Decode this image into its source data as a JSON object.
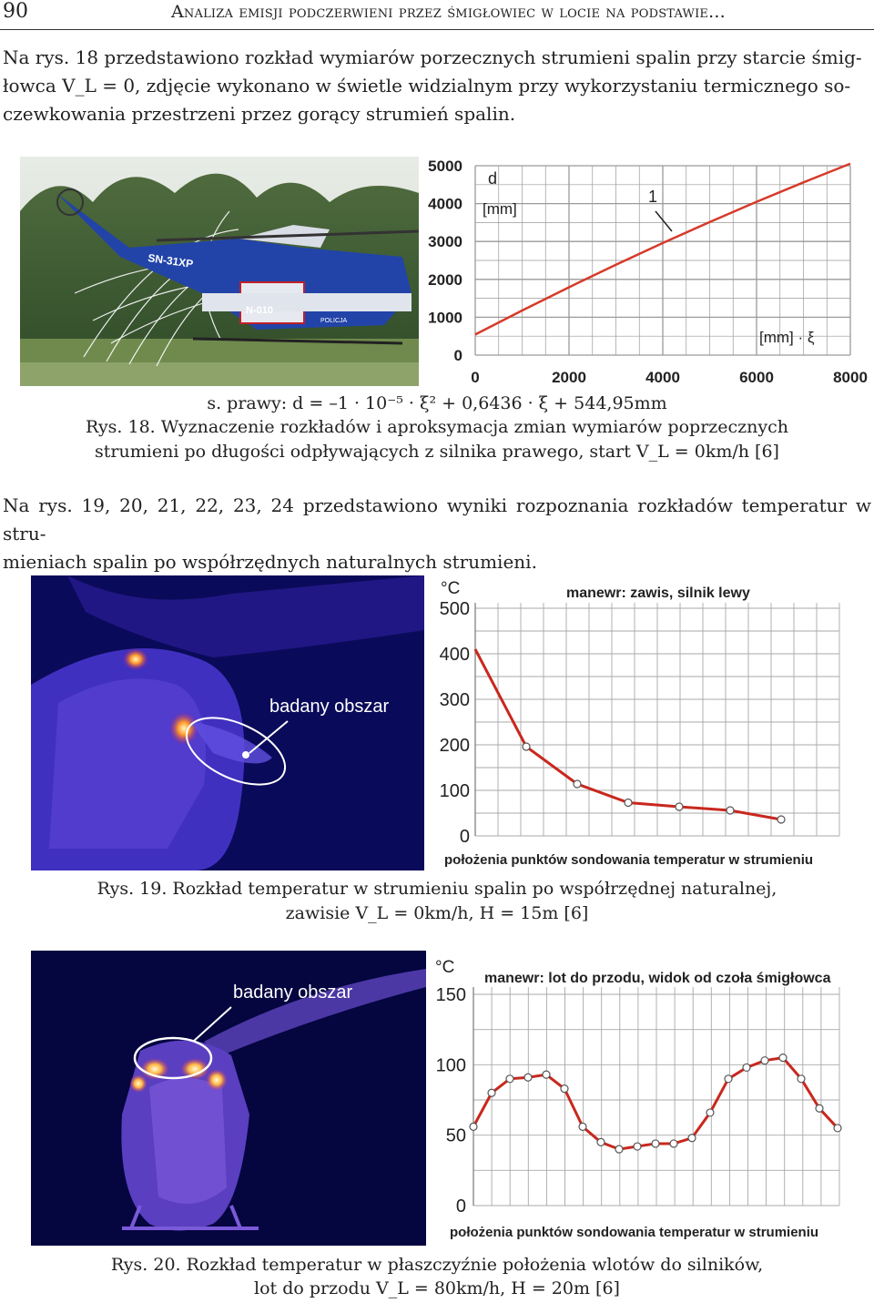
{
  "header": {
    "page_number": "90",
    "running_title": "Analiza emisji podczerwieni przez śmigłowiec w locie na podstawie..."
  },
  "paragraphs": {
    "p1": {
      "line1": "Na rys. 18 przedstawiono rozkład wymiarów porzecznych strumieni spalin przy starcie śmig-",
      "line2": "łowca V_L = 0, zdjęcie wykonano w świetle widzialnym przy wykorzystaniu termicznego so-",
      "line3": "czewkowania przestrzeni przez gorący strumień spalin."
    },
    "p2": {
      "line1": "Na rys. 19, 20, 21, 22, 23, 24 przedstawiono wyniki rozpoznania rozkładów temperatur w stru-",
      "line2": "mieniach spalin po współrzędnych naturalnych strumieni."
    }
  },
  "figure18": {
    "photo": {
      "label_tail": "SN-31XP",
      "label_door": "N-010",
      "label_police": "POLICJA"
    },
    "chart_labels": {
      "d_label": "d",
      "d_unit": "[mm]",
      "curve_label": "1",
      "xi_label": "[mm] · ξ"
    },
    "formula": "s. prawy: d = –1 · 10⁻⁵ · ξ² + 0,6436 · ξ + 544,95mm",
    "caption_line1": "Rys. 18. Wyznaczenie rozkładów i aproksymacja zmian wymiarów poprzecznych",
    "caption_line2": "strumieni po długości odpływających z silnika prawego, start V_L = 0km/h [6]"
  },
  "figure19": {
    "thermal_label": "badany obszar",
    "chart_title": "manewr: zawis, silnik lewy",
    "unit": "°C",
    "xlabel": "położenia punktów sondowania temperatur w strumieniu",
    "caption_line1": "Rys. 19. Rozkład temperatur w strumieniu spalin po współrzędnej naturalnej,",
    "caption_line2": "zawisie V_L = 0km/h, H = 15m [6]"
  },
  "figure20": {
    "thermal_label": "badany obszar",
    "chart_title": "manewr: lot do przodu, widok od czoła śmigłowca",
    "unit": "°C",
    "xlabel": "położenia punktów sondowania temperatur w strumieniu",
    "caption_line1": "Rys. 20. Rozkład temperatur w płaszczyźnie położenia wlotów do silników,",
    "caption_line2": "lot do przodu V_L = 80km/h, H = 20m [6]"
  },
  "chart_data": [
    {
      "type": "line",
      "xlim": [
        0,
        8000
      ],
      "ylim": [
        0,
        5000
      ],
      "x_ticks": [
        "0",
        "2000",
        "4000",
        "6000",
        "8000"
      ],
      "y_ticks": [
        "0",
        "1000",
        "2000",
        "3000",
        "4000",
        "5000"
      ],
      "series": [
        {
          "name": "1",
          "x": [
            0,
            1000,
            2000,
            3000,
            4000,
            5000,
            6000,
            7000,
            8000
          ],
          "values": [
            545,
            1179,
            1792,
            2386,
            2960,
            3513,
            4047,
            4560,
            5054
          ]
        }
      ],
      "color": "#d63a2a",
      "grid": true
    },
    {
      "type": "line",
      "ylim": [
        0,
        500
      ],
      "y_ticks": [
        "0",
        "100",
        "200",
        "300",
        "400",
        "500"
      ],
      "x": [
        0,
        1,
        2,
        3,
        4,
        5,
        6
      ],
      "values": [
        410,
        196,
        114,
        73,
        64,
        56,
        36
      ],
      "color": "#c8281e",
      "grid": true
    },
    {
      "type": "line",
      "ylim": [
        0,
        150
      ],
      "y_ticks": [
        "0",
        "50",
        "100",
        "150"
      ],
      "x": [
        0,
        1,
        2,
        3,
        4,
        5,
        6,
        7,
        8,
        9,
        10,
        11,
        12,
        13,
        14,
        15,
        16,
        17,
        18,
        19,
        20
      ],
      "values": [
        56,
        80,
        90,
        91,
        93,
        83,
        56,
        45,
        40,
        42,
        44,
        44,
        48,
        66,
        90,
        98,
        103,
        105,
        90,
        69,
        55
      ],
      "color": "#c8281e",
      "grid": true
    }
  ]
}
